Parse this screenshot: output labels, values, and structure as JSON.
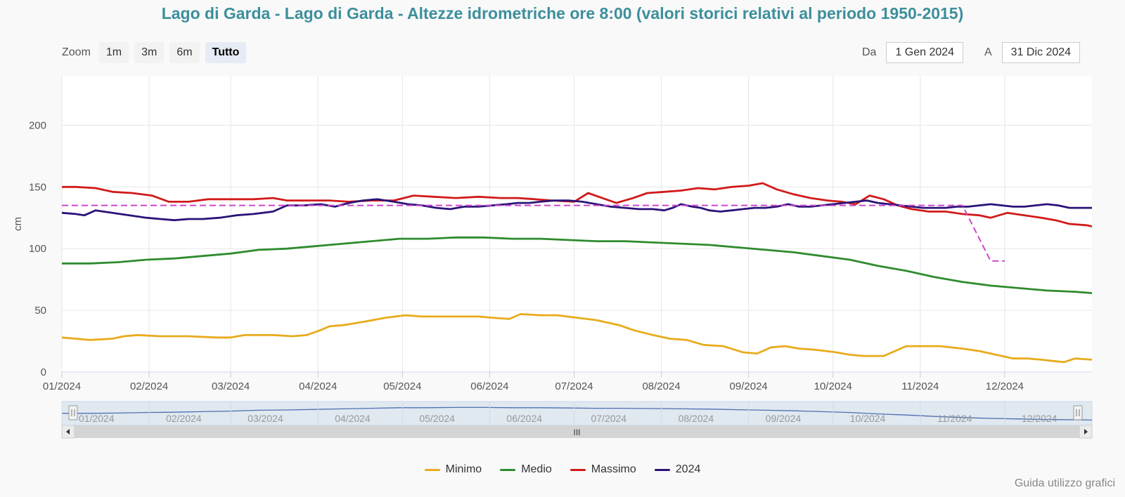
{
  "title": "Lago di Garda - Lago di Garda - Altezze idrometriche ore 8:00 (valori storici relativi al periodo 1950-2015)",
  "zoom": {
    "label": "Zoom",
    "buttons": [
      "1m",
      "3m",
      "6m",
      "Tutto"
    ],
    "active": "Tutto"
  },
  "range": {
    "from_label": "Da",
    "from_value": "1 Gen 2024",
    "to_label": "A",
    "to_value": "31 Dic 2024"
  },
  "guide_link": "Guida utilizzo grafici",
  "navigator": {
    "labels": [
      "01/2024",
      "02/2024",
      "03/2024",
      "04/2024",
      "05/2024",
      "06/2024",
      "07/2024",
      "08/2024",
      "09/2024",
      "10/2024",
      "11/2024",
      "12/2024"
    ],
    "handle_glyph": "III"
  },
  "chart_data": {
    "type": "line",
    "ylabel": "cm",
    "ylim": [
      0,
      240
    ],
    "yticks": [
      0,
      50,
      100,
      150,
      200
    ],
    "x_ticks": [
      "01/2024",
      "02/2024",
      "03/2024",
      "04/2024",
      "05/2024",
      "06/2024",
      "07/2024",
      "08/2024",
      "09/2024",
      "10/2024",
      "11/2024",
      "12/2024"
    ],
    "x_domain_days": [
      0,
      366
    ],
    "colors": {
      "Minimo": "#e8ab1c",
      "Medio": "#2e8b2e",
      "Massimo": "#d11a1a",
      "2024": "#2b1278",
      "reference": "#cc44cc"
    },
    "series": [
      {
        "name": "Minimo",
        "points": [
          [
            0,
            28
          ],
          [
            5,
            27
          ],
          [
            10,
            26
          ],
          [
            18,
            27
          ],
          [
            22,
            29
          ],
          [
            27,
            30
          ],
          [
            35,
            29
          ],
          [
            45,
            29
          ],
          [
            55,
            28
          ],
          [
            60,
            28
          ],
          [
            65,
            30
          ],
          [
            75,
            30
          ],
          [
            82,
            29
          ],
          [
            87,
            30
          ],
          [
            92,
            34
          ],
          [
            95,
            37
          ],
          [
            100,
            38
          ],
          [
            108,
            41
          ],
          [
            115,
            44
          ],
          [
            122,
            46
          ],
          [
            128,
            45
          ],
          [
            135,
            45
          ],
          [
            142,
            45
          ],
          [
            148,
            45
          ],
          [
            153,
            44
          ],
          [
            159,
            43
          ],
          [
            163,
            47
          ],
          [
            170,
            46
          ],
          [
            176,
            46
          ],
          [
            183,
            44
          ],
          [
            190,
            42
          ],
          [
            198,
            38
          ],
          [
            203,
            34
          ],
          [
            210,
            30
          ],
          [
            216,
            27
          ],
          [
            222,
            26
          ],
          [
            228,
            22
          ],
          [
            235,
            21
          ],
          [
            242,
            16
          ],
          [
            247,
            15
          ],
          [
            252,
            20
          ],
          [
            257,
            21
          ],
          [
            262,
            19
          ],
          [
            268,
            18
          ],
          [
            275,
            16
          ],
          [
            280,
            14
          ],
          [
            285,
            13
          ],
          [
            292,
            13
          ],
          [
            296,
            17
          ],
          [
            300,
            21
          ],
          [
            305,
            21
          ],
          [
            312,
            21
          ],
          [
            320,
            19
          ],
          [
            326,
            17
          ],
          [
            332,
            14
          ],
          [
            338,
            11
          ],
          [
            343,
            11
          ],
          [
            348,
            10
          ],
          [
            352,
            9
          ],
          [
            356,
            8
          ],
          [
            360,
            11
          ],
          [
            366,
            10
          ]
        ]
      },
      {
        "name": "Medio",
        "points": [
          [
            0,
            88
          ],
          [
            10,
            88
          ],
          [
            20,
            89
          ],
          [
            30,
            91
          ],
          [
            40,
            92
          ],
          [
            50,
            94
          ],
          [
            60,
            96
          ],
          [
            70,
            99
          ],
          [
            80,
            100
          ],
          [
            90,
            102
          ],
          [
            100,
            104
          ],
          [
            110,
            106
          ],
          [
            120,
            108
          ],
          [
            130,
            108
          ],
          [
            140,
            109
          ],
          [
            150,
            109
          ],
          [
            160,
            108
          ],
          [
            170,
            108
          ],
          [
            180,
            107
          ],
          [
            190,
            106
          ],
          [
            200,
            106
          ],
          [
            210,
            105
          ],
          [
            220,
            104
          ],
          [
            230,
            103
          ],
          [
            240,
            101
          ],
          [
            250,
            99
          ],
          [
            260,
            97
          ],
          [
            270,
            94
          ],
          [
            280,
            91
          ],
          [
            290,
            86
          ],
          [
            300,
            82
          ],
          [
            310,
            77
          ],
          [
            320,
            73
          ],
          [
            330,
            70
          ],
          [
            340,
            68
          ],
          [
            350,
            66
          ],
          [
            360,
            65
          ],
          [
            366,
            64
          ]
        ]
      },
      {
        "name": "Massimo",
        "points": [
          [
            0,
            150
          ],
          [
            5,
            150
          ],
          [
            12,
            149
          ],
          [
            18,
            146
          ],
          [
            25,
            145
          ],
          [
            32,
            143
          ],
          [
            38,
            138
          ],
          [
            45,
            138
          ],
          [
            52,
            140
          ],
          [
            60,
            140
          ],
          [
            68,
            140
          ],
          [
            75,
            141
          ],
          [
            80,
            139
          ],
          [
            88,
            139
          ],
          [
            95,
            139
          ],
          [
            102,
            138
          ],
          [
            110,
            139
          ],
          [
            118,
            139
          ],
          [
            125,
            143
          ],
          [
            132,
            142
          ],
          [
            140,
            141
          ],
          [
            148,
            142
          ],
          [
            156,
            141
          ],
          [
            162,
            141
          ],
          [
            168,
            140
          ],
          [
            174,
            139
          ],
          [
            182,
            138
          ],
          [
            187,
            145
          ],
          [
            192,
            141
          ],
          [
            197,
            137
          ],
          [
            203,
            141
          ],
          [
            208,
            145
          ],
          [
            214,
            146
          ],
          [
            220,
            147
          ],
          [
            226,
            149
          ],
          [
            232,
            148
          ],
          [
            238,
            150
          ],
          [
            244,
            151
          ],
          [
            249,
            153
          ],
          [
            254,
            148
          ],
          [
            260,
            144
          ],
          [
            266,
            141
          ],
          [
            272,
            139
          ],
          [
            277,
            138
          ],
          [
            282,
            136
          ],
          [
            287,
            143
          ],
          [
            292,
            140
          ],
          [
            297,
            135
          ],
          [
            302,
            132
          ],
          [
            308,
            130
          ],
          [
            314,
            130
          ],
          [
            320,
            128
          ],
          [
            326,
            127
          ],
          [
            330,
            125
          ],
          [
            336,
            129
          ],
          [
            342,
            127
          ],
          [
            348,
            125
          ],
          [
            353,
            123
          ],
          [
            358,
            120
          ],
          [
            364,
            119
          ],
          [
            366,
            118
          ]
        ]
      },
      {
        "name": "2024",
        "points": [
          [
            0,
            129
          ],
          [
            5,
            128
          ],
          [
            8,
            127
          ],
          [
            12,
            131
          ],
          [
            18,
            129
          ],
          [
            24,
            127
          ],
          [
            30,
            125
          ],
          [
            35,
            124
          ],
          [
            40,
            123
          ],
          [
            45,
            124
          ],
          [
            50,
            124
          ],
          [
            56,
            125
          ],
          [
            62,
            127
          ],
          [
            68,
            128
          ],
          [
            75,
            130
          ],
          [
            80,
            135
          ],
          [
            86,
            135
          ],
          [
            92,
            136
          ],
          [
            97,
            134
          ],
          [
            102,
            137
          ],
          [
            107,
            139
          ],
          [
            112,
            140
          ],
          [
            118,
            138
          ],
          [
            123,
            136
          ],
          [
            128,
            135
          ],
          [
            133,
            133
          ],
          [
            138,
            132
          ],
          [
            143,
            134
          ],
          [
            148,
            134
          ],
          [
            153,
            135
          ],
          [
            158,
            136
          ],
          [
            162,
            137
          ],
          [
            166,
            137
          ],
          [
            170,
            138
          ],
          [
            175,
            139
          ],
          [
            180,
            139
          ],
          [
            185,
            138
          ],
          [
            190,
            136
          ],
          [
            195,
            134
          ],
          [
            200,
            133
          ],
          [
            205,
            132
          ],
          [
            210,
            132
          ],
          [
            214,
            131
          ],
          [
            217,
            133
          ],
          [
            220,
            136
          ],
          [
            224,
            134
          ],
          [
            227,
            133
          ],
          [
            230,
            131
          ],
          [
            234,
            130
          ],
          [
            238,
            131
          ],
          [
            242,
            132
          ],
          [
            246,
            133
          ],
          [
            250,
            133
          ],
          [
            254,
            134
          ],
          [
            258,
            136
          ],
          [
            262,
            134
          ],
          [
            266,
            134
          ],
          [
            270,
            135
          ],
          [
            274,
            136
          ],
          [
            278,
            137
          ],
          [
            282,
            138
          ],
          [
            286,
            139
          ],
          [
            290,
            137
          ],
          [
            294,
            136
          ],
          [
            298,
            135
          ],
          [
            302,
            134
          ],
          [
            306,
            133
          ],
          [
            310,
            133
          ],
          [
            314,
            133
          ],
          [
            318,
            134
          ],
          [
            322,
            134
          ],
          [
            326,
            135
          ],
          [
            330,
            136
          ],
          [
            334,
            135
          ],
          [
            338,
            134
          ],
          [
            342,
            134
          ],
          [
            346,
            135
          ],
          [
            350,
            136
          ],
          [
            354,
            135
          ],
          [
            358,
            133
          ],
          [
            362,
            133
          ],
          [
            366,
            133
          ]
        ]
      },
      {
        "name": "reference",
        "dashed": true,
        "points": [
          [
            0,
            135
          ],
          [
            300,
            135
          ],
          [
            320,
            135
          ],
          [
            330,
            90
          ],
          [
            335,
            90
          ]
        ]
      }
    ]
  }
}
